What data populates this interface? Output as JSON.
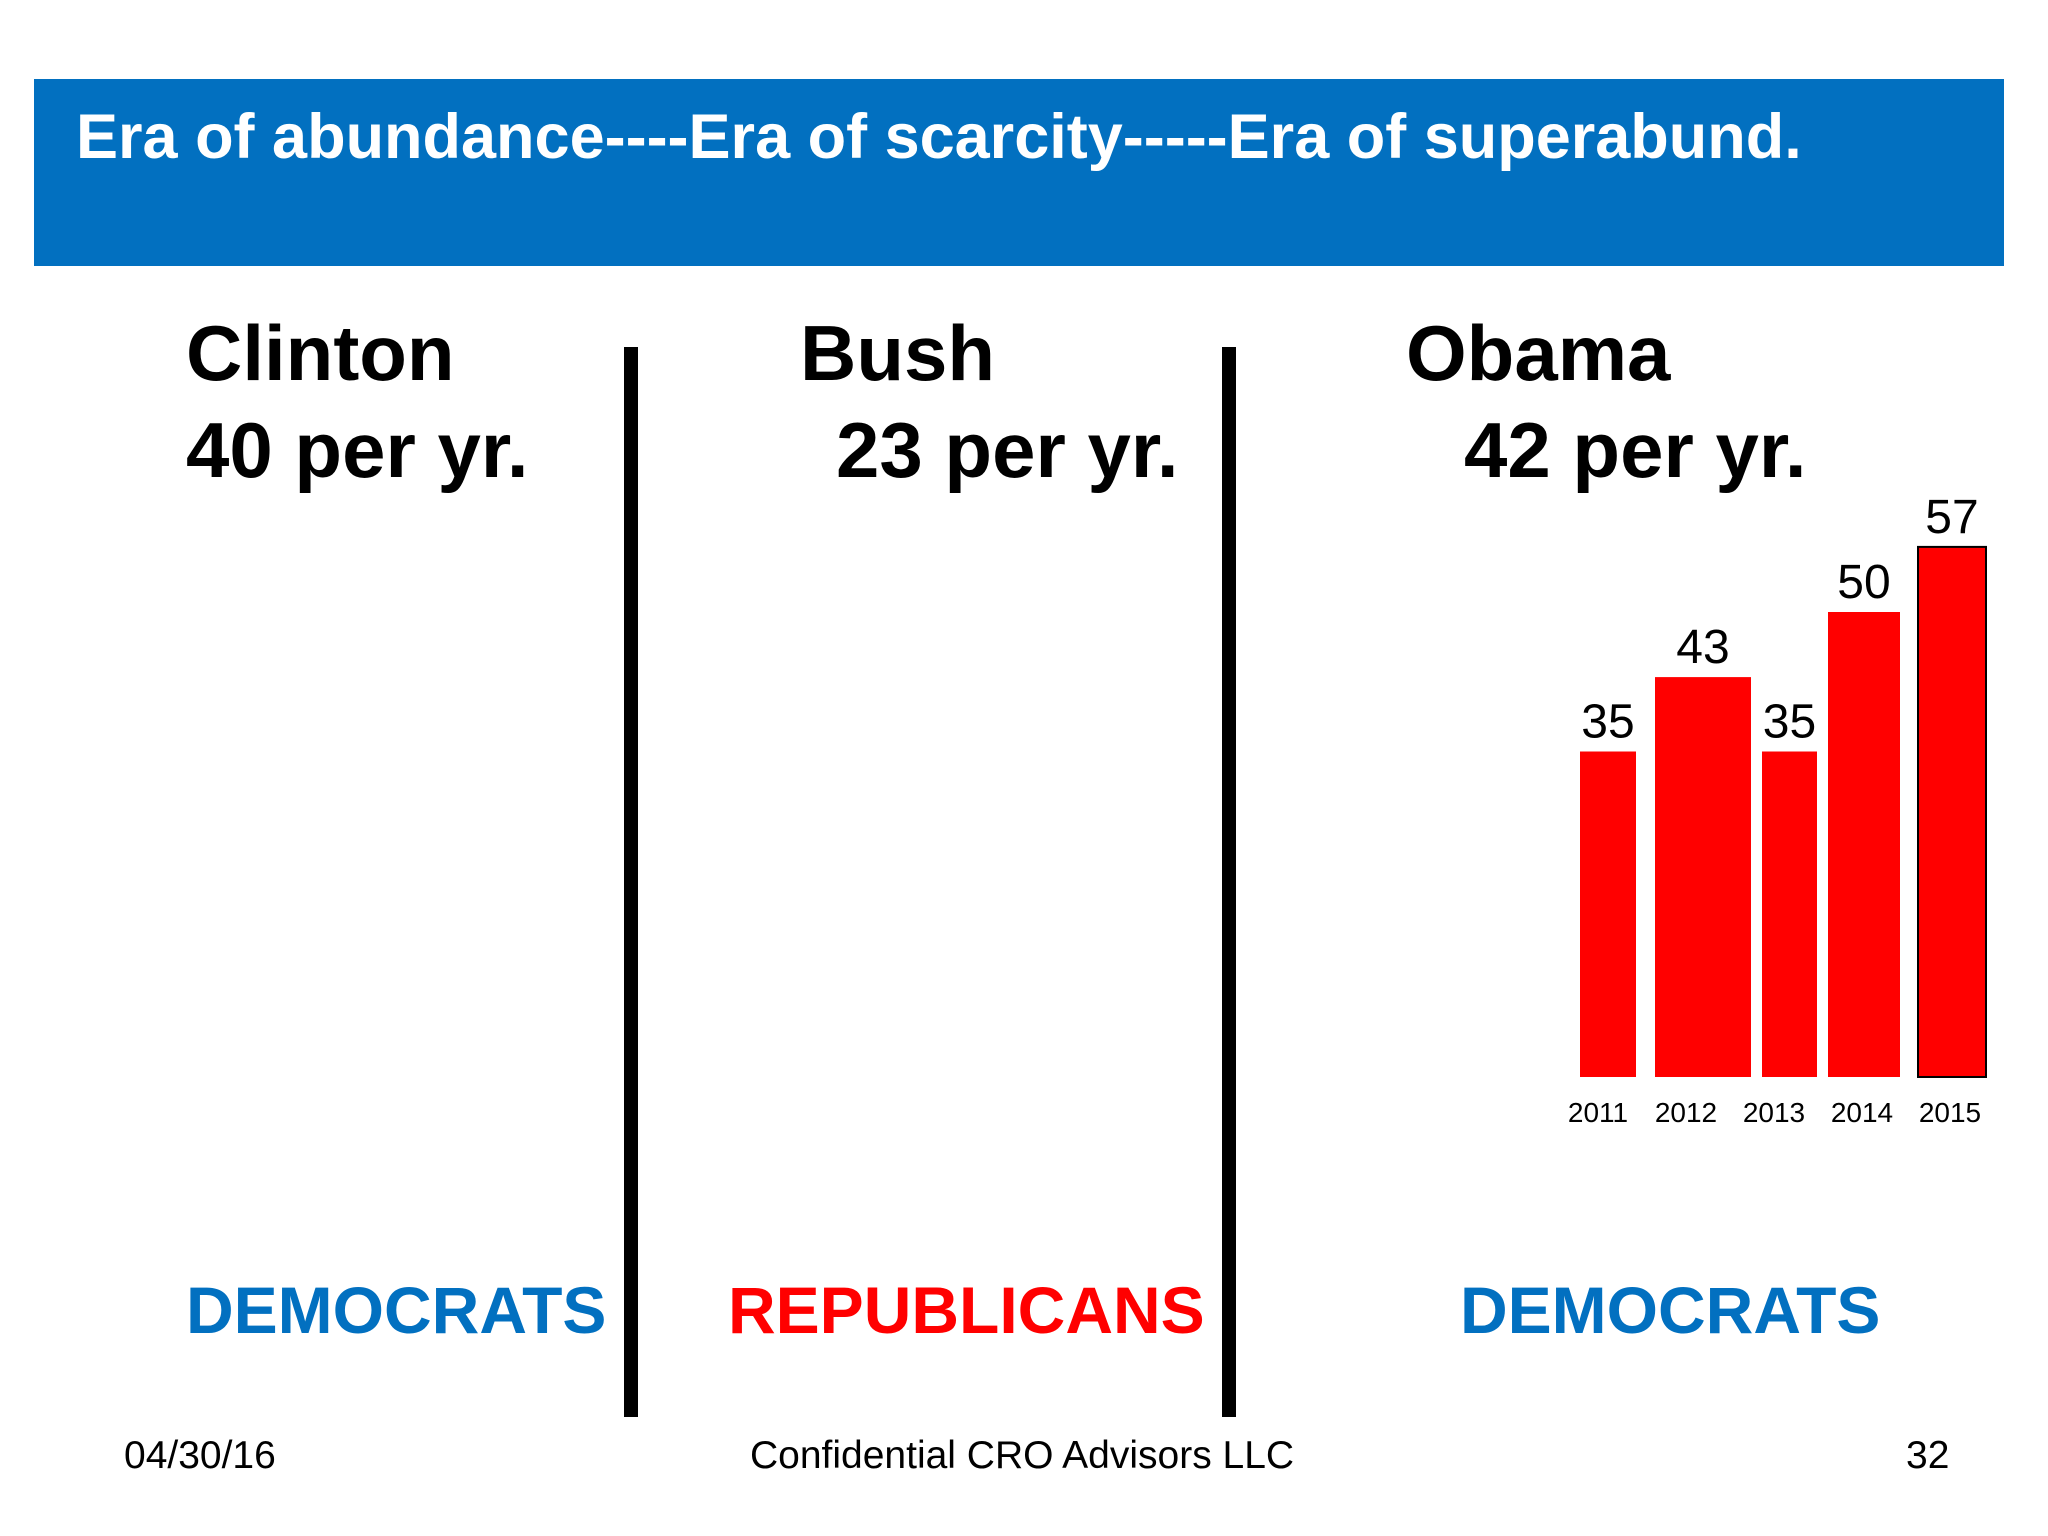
{
  "header": {
    "title": "Era of abundance----Era of scarcity-----Era of superabund.",
    "bar_color": "#0270c0"
  },
  "columns": [
    {
      "name": "Clinton",
      "rate": "40 per yr.",
      "party": "DEMOCRATS",
      "party_color": "#0270c0"
    },
    {
      "name": "Bush",
      "rate": "23 per yr.",
      "party": "REPUBLICANS",
      "party_color": "#ff0000"
    },
    {
      "name": "Obama",
      "rate": "42 per yr.",
      "party": "DEMOCRATS",
      "party_color": "#0270c0"
    }
  ],
  "footer": {
    "date": "04/30/16",
    "center": "Confidential  CRO Advisors LLC",
    "page": "32"
  },
  "chart_data": {
    "type": "bar",
    "categories": [
      "2011",
      "2012",
      "2013",
      "2014",
      "2015"
    ],
    "values": [
      35,
      43,
      35,
      50,
      57
    ],
    "data_labels": [
      "35",
      "43",
      "35",
      "50",
      "57"
    ],
    "bar_color": "#ff0000",
    "grid": false,
    "title": "",
    "xlabel": "",
    "ylabel": ""
  }
}
